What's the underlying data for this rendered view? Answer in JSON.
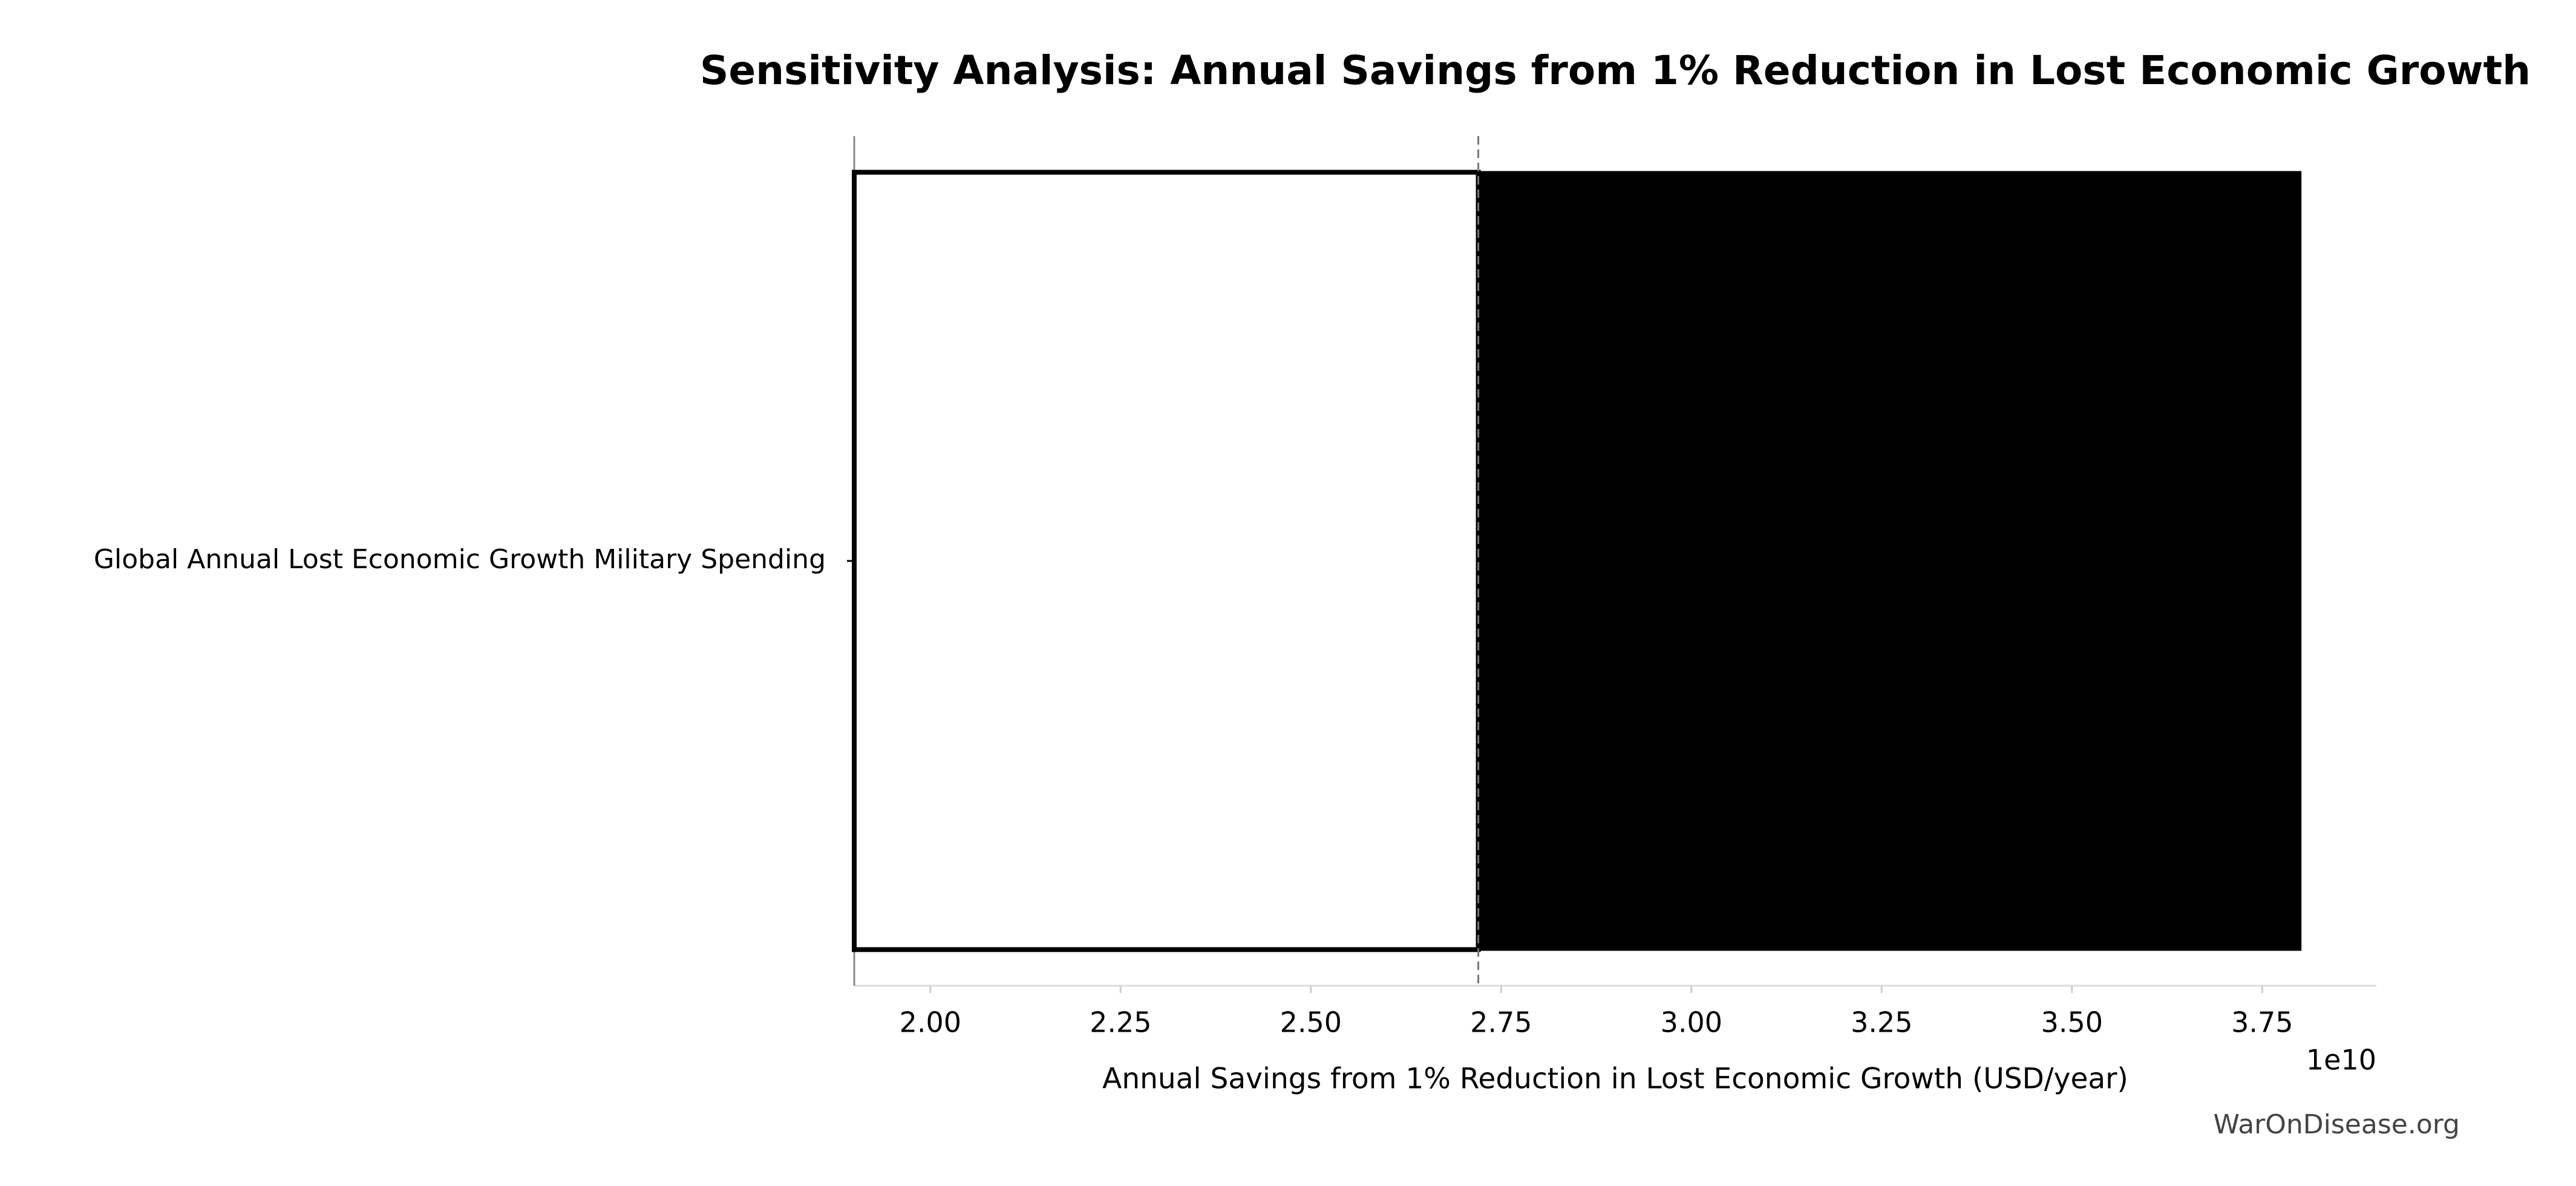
{
  "chart_data": {
    "type": "tornado",
    "title": "Sensitivity Analysis: Annual Savings from 1% Reduction in Lost Economic Growth",
    "xlabel": "Annual Savings from 1% Reduction in Lost Economic Growth (USD/year)",
    "x_offset_label": "1e10",
    "categories": [
      "Global Annual Lost Economic Growth Military Spending"
    ],
    "low": [
      19000000000
    ],
    "high": [
      38000000000
    ],
    "baseline": 27200000000,
    "low_color": "#ffffff",
    "high_color": "#000000",
    "xlim": [
      19000000000,
      39000000000
    ],
    "xticks": [
      {
        "value": 20000000000,
        "label": "2.00"
      },
      {
        "value": 22500000000,
        "label": "2.25"
      },
      {
        "value": 25000000000,
        "label": "2.50"
      },
      {
        "value": 27500000000,
        "label": "2.75"
      },
      {
        "value": 30000000000,
        "label": "3.00"
      },
      {
        "value": 32500000000,
        "label": "3.25"
      },
      {
        "value": 35000000000,
        "label": "3.50"
      },
      {
        "value": 37500000000,
        "label": "3.75"
      }
    ],
    "watermark": "WarOnDisease.org"
  }
}
